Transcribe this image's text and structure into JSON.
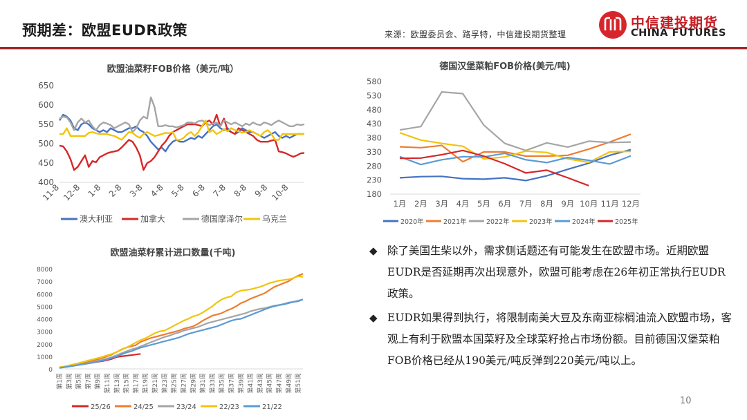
{
  "header": {
    "title": "预期差：欧盟EUDR政策",
    "source": "来源：欧盟委员会、路孚特，中信建投期货整理",
    "logo_cn": "中信建投期货",
    "logo_en": "CHINA FUTURES",
    "logo_mark": "citic-logo-icon"
  },
  "colors": {
    "accent": "#a52a2a",
    "logo_red": "#d6262b"
  },
  "bullets": [
    {
      "icon": "diamond-bullet-icon",
      "text": "除了美国生柴以外，需求侧话题还有可能发生在欧盟市场。近期欧盟EUDR是否延期再次出现意外，欧盟可能考虑在26年初正常执行EUDR政策。"
    },
    {
      "icon": "diamond-bullet-icon",
      "text": "EUDR如果得到执行，将限制南美大豆及东南亚棕榈油流入欧盟市场，客观上有利于欧盟本国菜籽及全球菜籽抢占市场份额。目前德国汉堡菜粕FOB价格已经从190美元/吨反弹到220美元/吨以上。"
    }
  ],
  "page_number": "10",
  "chart_data": [
    {
      "type": "line",
      "title": "欧盟油菜籽FOB价格（美元/吨）",
      "xlabel": "",
      "ylabel": "",
      "ylim": [
        400,
        650
      ],
      "yticks": [
        400,
        450,
        500,
        550,
        600,
        650
      ],
      "xtick_labels": [
        "11-8",
        "12-8",
        "1-8",
        "2-8",
        "3-8",
        "4-8",
        "5-8",
        "6-8",
        "7-8",
        "8-8",
        "9-8",
        "10-8"
      ],
      "points_per_tick": 4,
      "grid": false,
      "legend": "bottom",
      "series": [
        {
          "name": "澳大利亚",
          "color": "#4472c4",
          "values": [
            560,
            575,
            570,
            560,
            540,
            535,
            550,
            555,
            550,
            540,
            535,
            530,
            535,
            530,
            540,
            535,
            530,
            530,
            535,
            540,
            540,
            545,
            535,
            530,
            520,
            505,
            495,
            485,
            490,
            480,
            495,
            505,
            510,
            505,
            505,
            510,
            515,
            512,
            520,
            515,
            525,
            535,
            545,
            550,
            540,
            535,
            540,
            530,
            525,
            530,
            540,
            535,
            530,
            530,
            525,
            520,
            515,
            520,
            525,
            530,
            520,
            515,
            520,
            515,
            520,
            525,
            525,
            525
          ]
        },
        {
          "name": "加拿大",
          "color": "#d62728",
          "values": [
            495,
            493,
            480,
            460,
            432,
            440,
            455,
            470,
            440,
            455,
            452,
            465,
            470,
            475,
            478,
            480,
            482,
            490,
            500,
            510,
            505,
            490,
            470,
            432,
            450,
            455,
            465,
            480,
            495,
            505,
            520,
            530,
            535,
            540,
            545,
            550,
            550,
            550,
            548,
            545,
            555,
            560,
            550,
            575,
            545,
            565,
            535,
            530,
            525,
            540,
            535,
            530,
            525,
            520,
            510,
            505,
            505,
            505,
            508,
            510,
            480,
            478,
            475,
            470,
            466,
            470,
            475,
            476
          ]
        },
        {
          "name": "德国摩泽尔",
          "color": "#a5a5a5",
          "values": [
            565,
            570,
            568,
            555,
            535,
            555,
            565,
            555,
            560,
            545,
            535,
            548,
            555,
            552,
            548,
            540,
            545,
            550,
            555,
            550,
            530,
            540,
            560,
            570,
            565,
            620,
            595,
            545,
            545,
            548,
            545,
            545,
            542,
            545,
            548,
            555,
            555,
            552,
            558,
            560,
            555,
            548,
            552,
            555,
            545,
            560,
            555,
            550,
            555,
            550,
            545,
            552,
            548,
            555,
            550,
            548,
            555,
            552,
            548,
            555,
            560,
            555,
            550,
            545,
            545,
            550,
            548,
            550
          ]
        },
        {
          "name": "乌克兰",
          "color": "#f2c40c",
          "values": [
            525,
            525,
            540,
            520,
            520,
            520,
            520,
            520,
            528,
            530,
            527,
            525,
            525,
            525,
            522,
            520,
            515,
            510,
            520,
            530,
            528,
            520,
            515,
            525,
            530,
            525,
            520,
            522,
            525,
            528,
            527,
            530,
            510,
            510,
            515,
            525,
            530,
            520,
            530,
            545,
            560,
            530,
            535,
            525,
            530,
            538,
            532,
            540,
            535,
            532,
            528,
            530,
            535,
            530,
            525,
            520,
            530,
            535,
            525,
            510,
            510,
            525,
            525,
            525,
            525,
            525,
            525,
            525
          ]
        }
      ]
    },
    {
      "type": "line",
      "title": "德国汉堡菜粕FOB价格(美元/吨)",
      "xlabel": "",
      "ylabel": "",
      "ylim": [
        180,
        580
      ],
      "yticks": [
        180,
        230,
        280,
        330,
        380,
        430,
        480,
        530,
        580
      ],
      "categories": [
        "1月",
        "2月",
        "3月",
        "4月",
        "5月",
        "6月",
        "7月",
        "8月",
        "9月",
        "10月",
        "11月",
        "12月"
      ],
      "grid": false,
      "legend": "bottom",
      "series": [
        {
          "name": "2020年",
          "color": "#4472c4",
          "values": [
            238,
            242,
            243,
            235,
            233,
            238,
            228,
            245,
            268,
            290,
            318,
            338
          ]
        },
        {
          "name": "2021年",
          "color": "#ed7d31",
          "values": [
            348,
            345,
            353,
            295,
            330,
            330,
            315,
            315,
            318,
            340,
            365,
            393
          ]
        },
        {
          "name": "2022年",
          "color": "#a5a5a5",
          "values": [
            408,
            420,
            543,
            537,
            425,
            360,
            335,
            362,
            347,
            368,
            363,
            365
          ]
        },
        {
          "name": "2023年",
          "color": "#f2c40c",
          "values": [
            398,
            372,
            360,
            350,
            305,
            312,
            333,
            328,
            305,
            293,
            330,
            332
          ]
        },
        {
          "name": "2024年",
          "color": "#5b9bd5",
          "values": [
            313,
            285,
            302,
            313,
            312,
            325,
            302,
            292,
            310,
            300,
            287,
            316
          ]
        },
        {
          "name": "2025年",
          "color": "#d62728",
          "values": [
            307,
            308,
            320,
            335,
            315,
            288,
            255,
            265,
            238,
            210
          ]
        }
      ]
    },
    {
      "type": "line",
      "title": "欧盟油菜籽累计进口数量(千吨)",
      "xlabel": "",
      "ylabel": "",
      "ylim": [
        0,
        8000
      ],
      "yticks": [
        0,
        1000,
        2000,
        3000,
        4000,
        5000,
        6000,
        7000,
        8000
      ],
      "xtick_labels": [
        "第1周",
        "第3周",
        "第5周",
        "第7周",
        "第9周",
        "第11周",
        "第13周",
        "第15周",
        "第17周",
        "第19周",
        "第21周",
        "第23周",
        "第25周",
        "第27周",
        "第29周",
        "第31周",
        "第33周",
        "第35周",
        "第37周",
        "第39周",
        "第41周",
        "第43周",
        "第45周",
        "第47周",
        "第49周",
        "第51周"
      ],
      "weeks": 52,
      "grid": false,
      "legend": "bottom",
      "series": [
        {
          "name": "25/26",
          "color": "#d62728",
          "values": [
            100,
            150,
            200,
            260,
            320,
            380,
            440,
            500,
            560,
            620,
            700,
            800,
            950,
            1000,
            1050,
            1100,
            1150,
            1200
          ]
        },
        {
          "name": "24/25",
          "color": "#ed7d31",
          "values": [
            120,
            180,
            240,
            310,
            380,
            460,
            540,
            650,
            760,
            870,
            1000,
            1150,
            1350,
            1550,
            1700,
            1800,
            1900,
            2150,
            2300,
            2450,
            2550,
            2650,
            2750,
            2850,
            2950,
            3050,
            3200,
            3300,
            3400,
            3600,
            3850,
            4050,
            4250,
            4350,
            4450,
            4650,
            4800,
            5000,
            5250,
            5400,
            5600,
            5750,
            5900,
            6050,
            6300,
            6550,
            6700,
            6850,
            7000,
            7250,
            7450,
            7600
          ]
        },
        {
          "name": "23/24",
          "color": "#a5a5a5",
          "values": [
            100,
            150,
            200,
            260,
            330,
            400,
            470,
            550,
            640,
            730,
            830,
            950,
            1100,
            1250,
            1400,
            1550,
            1650,
            1800,
            1950,
            2100,
            2250,
            2400,
            2550,
            2650,
            2800,
            2900,
            3050,
            3150,
            3250,
            3350,
            3500,
            3650,
            3750,
            3850,
            3950,
            4050,
            4150,
            4250,
            4350,
            4450,
            4600,
            4700,
            4800,
            4850,
            4950,
            5050,
            5100,
            5200,
            5300,
            5350,
            5450,
            5550
          ]
        },
        {
          "name": "22/23",
          "color": "#f2c40c",
          "values": [
            130,
            200,
            280,
            370,
            460,
            560,
            660,
            760,
            860,
            960,
            1080,
            1200,
            1350,
            1520,
            1700,
            1900,
            2100,
            2300,
            2450,
            2650,
            2850,
            3000,
            3050,
            3250,
            3450,
            3650,
            3850,
            4000,
            4200,
            4300,
            4500,
            4750,
            5000,
            5300,
            5550,
            5700,
            5800,
            6100,
            6250,
            6300,
            6350,
            6450,
            6550,
            6700,
            6850,
            6950,
            7050,
            7100,
            7150,
            7250,
            7400,
            7350
          ]
        },
        {
          "name": "21/22",
          "color": "#5b9bd5",
          "values": [
            80,
            130,
            190,
            250,
            310,
            370,
            430,
            500,
            580,
            660,
            760,
            880,
            1000,
            1150,
            1300,
            1400,
            1550,
            1700,
            1800,
            1900,
            2000,
            2100,
            2200,
            2300,
            2400,
            2500,
            2650,
            2800,
            2900,
            3000,
            3100,
            3200,
            3300,
            3400,
            3550,
            3700,
            3850,
            3950,
            4000,
            4150,
            4300,
            4450,
            4600,
            4750,
            4900,
            5000,
            5100,
            5150,
            5250,
            5350,
            5400,
            5550
          ]
        }
      ]
    }
  ]
}
